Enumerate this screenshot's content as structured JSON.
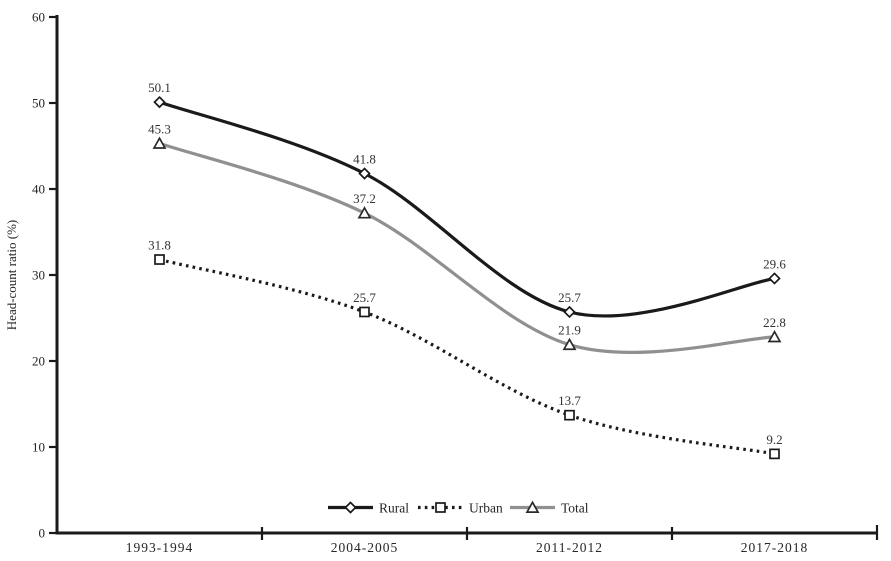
{
  "chart_data": {
    "type": "line",
    "title": "",
    "xlabel": "",
    "ylabel": "Head-count ratio (%)",
    "ylim": [
      0,
      60
    ],
    "yticks": [
      "0",
      "10",
      "20",
      "30",
      "40",
      "50",
      "60"
    ],
    "ytick_values": [
      0,
      10,
      20,
      30,
      40,
      50,
      60
    ],
    "categories": [
      "1993-1994",
      "2004-2005",
      "2011-2012",
      "2017-2018"
    ],
    "series": [
      {
        "name": "Rural",
        "values": [
          50.1,
          41.8,
          25.7,
          29.6
        ],
        "color": "#1a1a1a",
        "line_style": "solid",
        "marker": "diamond"
      },
      {
        "name": "Urban",
        "values": [
          31.8,
          25.7,
          13.7,
          9.2
        ],
        "color": "#1a1a1a",
        "line_style": "dotted",
        "marker": "square"
      },
      {
        "name": "Total",
        "values": [
          45.3,
          37.2,
          21.9,
          22.8
        ],
        "color": "#909090",
        "line_style": "solid",
        "marker": "triangle"
      }
    ],
    "data_labels": true,
    "grid": false,
    "legend_position": "bottom-center-inside",
    "smoothing": "catmull-rom"
  },
  "colors": {
    "background": "#ffffff",
    "axis": "#1a1a1a",
    "tick_label": "#262626",
    "data_label": "#333333",
    "marker_fill": "#ffffff",
    "marker_stroke": "#1a1a1a"
  }
}
